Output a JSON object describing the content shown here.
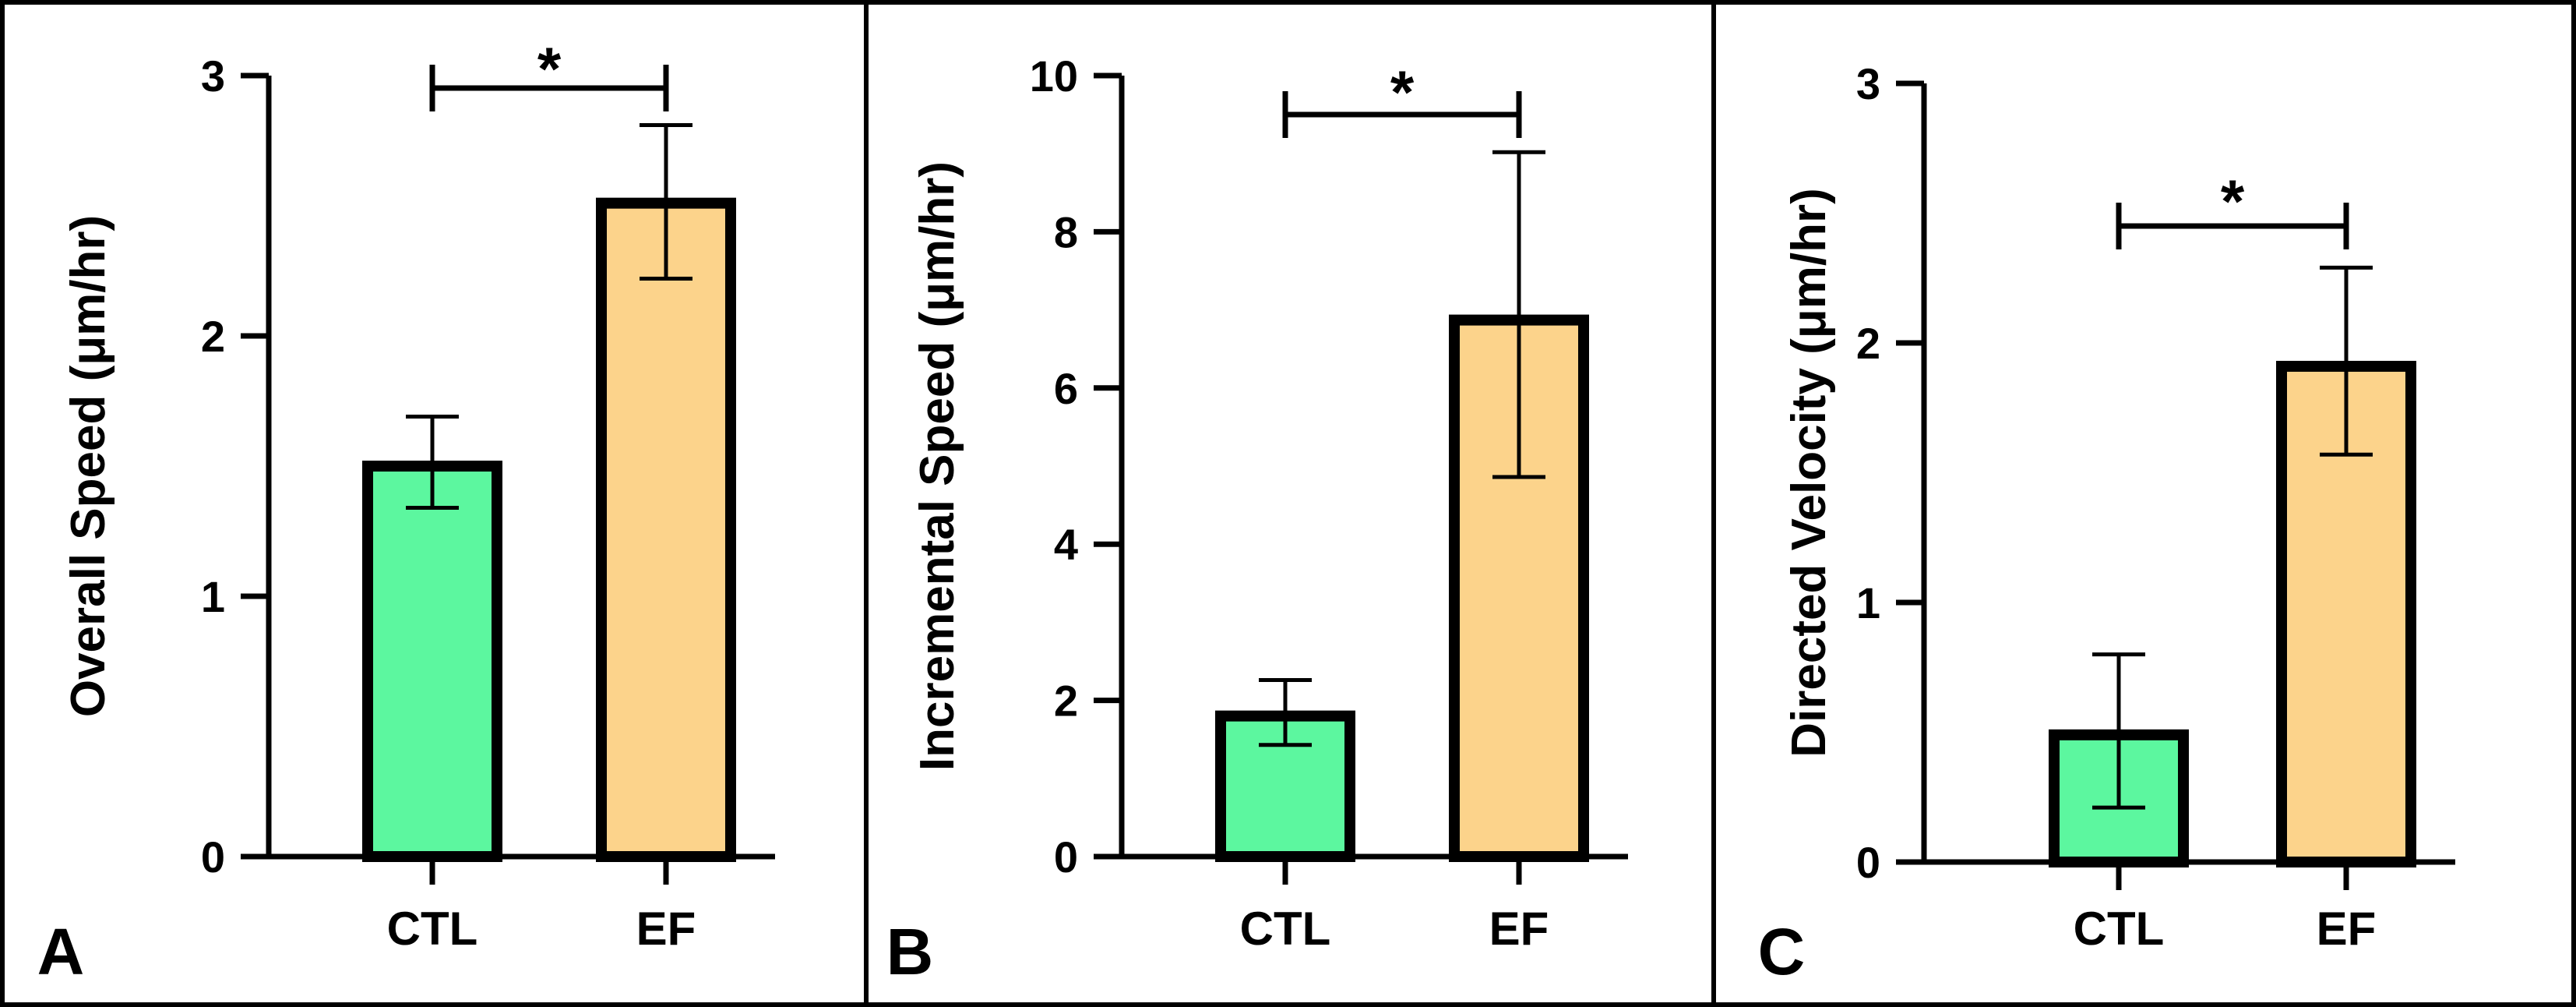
{
  "colors": {
    "ctl_fill": "#5cf79f",
    "ef_fill": "#fcd38b",
    "outline": "#000000"
  },
  "chart_data": [
    {
      "panel": "A",
      "type": "bar",
      "categories": [
        "CTL",
        "EF"
      ],
      "values": [
        1.5,
        2.51
      ],
      "error_low": [
        1.34,
        2.22
      ],
      "error_high": [
        1.69,
        2.81
      ],
      "ylabel": "Overall Speed (μm/hr)",
      "ylim": [
        0,
        3
      ],
      "yticks": [
        "0",
        "1",
        "2",
        "3"
      ],
      "significance": "*"
    },
    {
      "panel": "B",
      "type": "bar",
      "categories": [
        "CTL",
        "EF"
      ],
      "values": [
        1.8,
        6.87
      ],
      "error_low": [
        1.43,
        4.86
      ],
      "error_high": [
        2.26,
        9.02
      ],
      "ylabel": "Incremental Speed (μm/hr)",
      "ylim": [
        0,
        10
      ],
      "yticks": [
        "0",
        "2",
        "4",
        "6",
        "8",
        "10"
      ],
      "significance": "*"
    },
    {
      "panel": "C",
      "type": "bar",
      "categories": [
        "CTL",
        "EF"
      ],
      "values": [
        0.49,
        1.91
      ],
      "error_low": [
        0.21,
        1.57
      ],
      "error_high": [
        0.8,
        2.29
      ],
      "ylabel": "Directed Velocity (μm/hr)",
      "ylim": [
        0,
        3
      ],
      "yticks": [
        "0",
        "1",
        "2",
        "3"
      ],
      "significance": "*"
    }
  ]
}
